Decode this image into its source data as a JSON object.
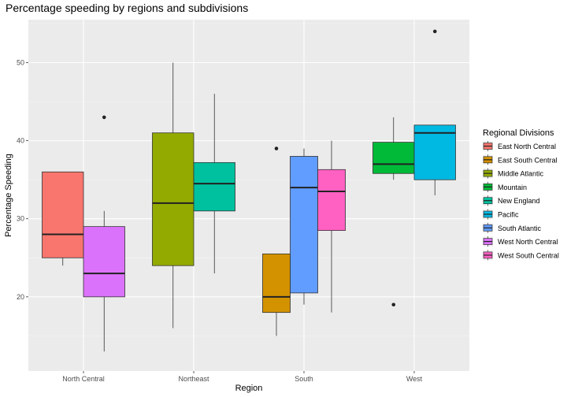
{
  "chart_data": {
    "type": "boxplot",
    "title": "Percentage speeding by regions and subdivisions",
    "xlabel": "Region",
    "ylabel": "Percentage Speeding",
    "ylim": [
      10.5,
      55.5
    ],
    "yticks": [
      20,
      30,
      40,
      50
    ],
    "categories": [
      "North Central",
      "Northeast",
      "South",
      "West"
    ],
    "legend_title": "Regional Divisions",
    "legend_position": "right",
    "grid": true,
    "series": [
      {
        "name": "East North Central",
        "color": "#F8766D"
      },
      {
        "name": "East South Central",
        "color": "#D39200"
      },
      {
        "name": "Middle Atlantic",
        "color": "#93AA00"
      },
      {
        "name": "Mountain",
        "color": "#00BA38"
      },
      {
        "name": "New England",
        "color": "#00C19F"
      },
      {
        "name": "Pacific",
        "color": "#00B9E3"
      },
      {
        "name": "South Atlantic",
        "color": "#619CFF"
      },
      {
        "name": "West North Central",
        "color": "#DB72FB"
      },
      {
        "name": "West South Central",
        "color": "#FF61C3"
      }
    ],
    "boxes": [
      {
        "category": "North Central",
        "division": "East North Central",
        "min": 24,
        "q1": 25,
        "median": 28,
        "q3": 36,
        "max": 36,
        "outliers": []
      },
      {
        "category": "North Central",
        "division": "West North Central",
        "min": 13,
        "q1": 20,
        "median": 23,
        "q3": 29,
        "max": 31,
        "outliers": [
          43
        ]
      },
      {
        "category": "Northeast",
        "division": "Middle Atlantic",
        "min": 16,
        "q1": 24,
        "median": 32,
        "q3": 41,
        "max": 50,
        "outliers": []
      },
      {
        "category": "Northeast",
        "division": "New England",
        "min": 23,
        "q1": 31,
        "median": 34.5,
        "q3": 37.2,
        "max": 46,
        "outliers": []
      },
      {
        "category": "South",
        "division": "East South Central",
        "min": 15,
        "q1": 18,
        "median": 20,
        "q3": 25.5,
        "max": 25.5,
        "outliers": [
          39
        ]
      },
      {
        "category": "South",
        "division": "South Atlantic",
        "min": 19,
        "q1": 20.5,
        "median": 34,
        "q3": 38,
        "max": 39,
        "outliers": []
      },
      {
        "category": "South",
        "division": "West South Central",
        "min": 18,
        "q1": 28.5,
        "median": 33.5,
        "q3": 36.3,
        "max": 40,
        "outliers": []
      },
      {
        "category": "West",
        "division": "Mountain",
        "min": 35,
        "q1": 35.8,
        "median": 37,
        "q3": 39.8,
        "max": 43,
        "outliers": [
          19
        ]
      },
      {
        "category": "West",
        "division": "Pacific",
        "min": 33,
        "q1": 35,
        "median": 41,
        "q3": 42,
        "max": 42,
        "outliers": [
          54
        ]
      }
    ]
  }
}
